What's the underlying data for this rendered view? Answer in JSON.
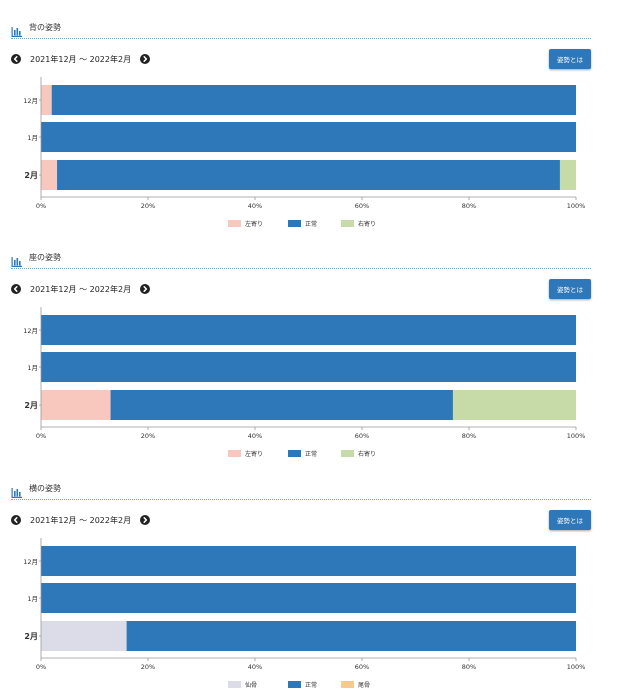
{
  "period_text": "2021年12月 〜 2022年2月",
  "button_label": "姿勢とは",
  "icon": "bar-chart-icon",
  "colors": {
    "accent": "#2e77b8",
    "left": "#f8c8be",
    "normal": "#2e77b8",
    "right": "#c7dba9",
    "sacrum": "#dcdce8",
    "coccyx": "#f6c98c"
  },
  "sections": [
    {
      "title": "背の姿勢",
      "chart_data": {
        "type": "bar",
        "orientation": "horizontal",
        "stacked": true,
        "categories": [
          "12月",
          "1月",
          "2月"
        ],
        "highlight_category": "2月",
        "x_ticks": [
          "0%",
          "20%",
          "40%",
          "60%",
          "80%",
          "100%"
        ],
        "xlim": [
          0,
          100
        ],
        "legend_position": "bottom",
        "series": [
          {
            "name": "左寄り",
            "color": "#f8c8be",
            "values": [
              2,
              0,
              3
            ]
          },
          {
            "name": "正常",
            "color": "#2e77b8",
            "values": [
              98,
              100,
              94
            ]
          },
          {
            "name": "右寄り",
            "color": "#c7dba9",
            "values": [
              0,
              0,
              3
            ]
          }
        ]
      }
    },
    {
      "title": "座の姿勢",
      "chart_data": {
        "type": "bar",
        "orientation": "horizontal",
        "stacked": true,
        "categories": [
          "12月",
          "1月",
          "2月"
        ],
        "highlight_category": "2月",
        "x_ticks": [
          "0%",
          "20%",
          "40%",
          "60%",
          "80%",
          "100%"
        ],
        "xlim": [
          0,
          100
        ],
        "legend_position": "bottom",
        "series": [
          {
            "name": "左寄り",
            "color": "#f8c8be",
            "values": [
              0,
              0,
              13
            ]
          },
          {
            "name": "正常",
            "color": "#2e77b8",
            "values": [
              100,
              100,
              64
            ]
          },
          {
            "name": "右寄り",
            "color": "#c7dba9",
            "values": [
              0,
              0,
              23
            ]
          }
        ]
      }
    },
    {
      "title": "横の姿勢",
      "chart_data": {
        "type": "bar",
        "orientation": "horizontal",
        "stacked": true,
        "categories": [
          "12月",
          "1月",
          "2月"
        ],
        "highlight_category": "2月",
        "x_ticks": [
          "0%",
          "20%",
          "40%",
          "60%",
          "80%",
          "100%"
        ],
        "xlim": [
          0,
          100
        ],
        "legend_position": "bottom",
        "series": [
          {
            "name": "仙骨",
            "color": "#dcdce8",
            "values": [
              0,
              0,
              16
            ]
          },
          {
            "name": "正常",
            "color": "#2e77b8",
            "values": [
              100,
              100,
              84
            ]
          },
          {
            "name": "尾骨",
            "color": "#f6c98c",
            "values": [
              0,
              0,
              0
            ]
          }
        ]
      }
    }
  ]
}
